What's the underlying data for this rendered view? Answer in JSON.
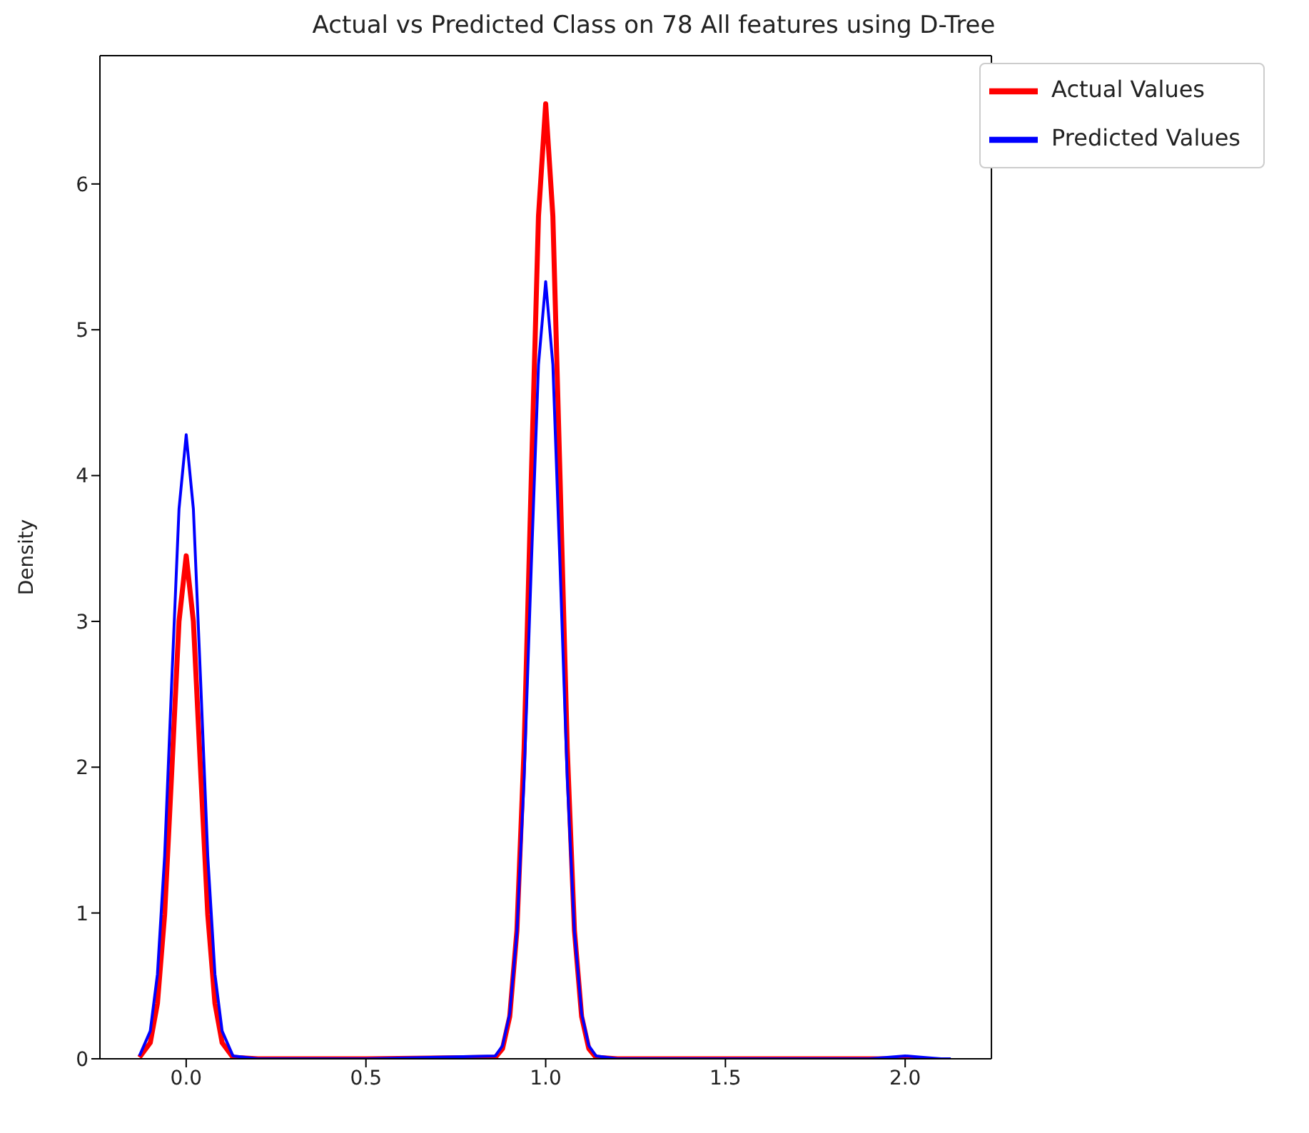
{
  "chart_data": {
    "type": "line",
    "title": "Actual vs Predicted Class on 78 All features using D-Tree",
    "ylabel": "Density",
    "x": [
      -0.13,
      -0.1,
      -0.08,
      -0.06,
      -0.04,
      -0.02,
      0,
      0.02,
      0.04,
      0.06,
      0.08,
      0.1,
      0.13,
      0.2,
      0.5,
      0.86,
      0.88,
      0.9,
      0.92,
      0.94,
      0.96,
      0.98,
      1,
      1.02,
      1.04,
      1.06,
      1.08,
      1.1,
      1.12,
      1.14,
      1.2,
      1.5,
      1.9,
      1.95,
      2,
      2.05,
      2.1,
      2.127
    ],
    "series": [
      {
        "name": "Actual Values",
        "color": "#ff0000",
        "values": [
          0.01,
          0.11,
          0.38,
          0.99,
          1.98,
          3.0,
          3.45,
          3.0,
          1.98,
          0.99,
          0.38,
          0.11,
          0.01,
          0,
          0,
          0.01,
          0.07,
          0.29,
          0.88,
          2.13,
          3.98,
          5.78,
          6.55,
          5.78,
          3.98,
          2.13,
          0.88,
          0.29,
          0.07,
          0.01,
          0,
          0,
          0,
          0,
          0,
          0,
          null,
          null
        ]
      },
      {
        "name": "Predicted Values",
        "color": "#0000ff",
        "values": [
          0.02,
          0.19,
          0.58,
          1.39,
          2.6,
          3.77,
          4.28,
          3.77,
          2.6,
          1.39,
          0.58,
          0.19,
          0.02,
          0,
          0,
          0.02,
          0.09,
          0.31,
          0.87,
          1.92,
          3.38,
          4.76,
          5.33,
          4.76,
          3.38,
          1.92,
          0.87,
          0.31,
          0.09,
          0.02,
          0,
          0,
          0,
          0.01,
          0.02,
          0.01,
          0,
          0
        ]
      }
    ],
    "xlim": [
      -0.24,
      2.24
    ],
    "xticks": [
      {
        "value": 0,
        "label": "0.0"
      },
      {
        "value": 0.5,
        "label": "0.5"
      },
      {
        "value": 1,
        "label": "1.0"
      },
      {
        "value": 1.5,
        "label": "1.5"
      },
      {
        "value": 2,
        "label": "2.0"
      }
    ],
    "ylim": [
      0,
      6.88
    ],
    "yticks": [
      0,
      1,
      2,
      3,
      4,
      5,
      6
    ],
    "grid": false,
    "legend": "top right",
    "marker": "none",
    "line_style": "solid"
  }
}
